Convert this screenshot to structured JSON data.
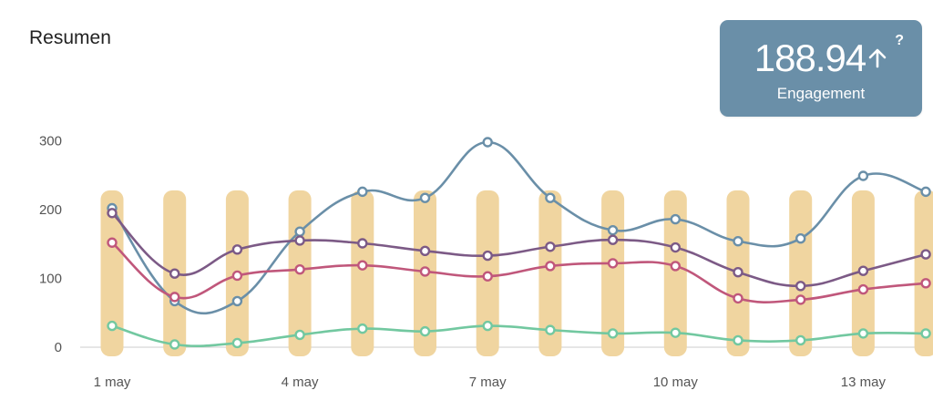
{
  "page": {
    "title": "Resumen"
  },
  "kpi": {
    "value": "188.94",
    "label": "Engagement",
    "help": "?",
    "trend": "up-arrow-icon"
  },
  "chart_data": {
    "type": "line",
    "x": [
      "1 may",
      "2 may",
      "3 may",
      "4 may",
      "5 may",
      "6 may",
      "7 may",
      "8 may",
      "9 may",
      "10 may",
      "11 may",
      "12 may",
      "13 may",
      "14 may"
    ],
    "xticks": [
      "1 may",
      "4 may",
      "7 may",
      "10 may",
      "13 may"
    ],
    "yticks": [
      0,
      100,
      200,
      300
    ],
    "ylim": [
      0,
      320
    ],
    "bars": {
      "color": "#f0d5a0",
      "values": [
        228,
        228,
        228,
        228,
        228,
        228,
        228,
        228,
        228,
        228,
        228,
        228,
        228,
        228
      ]
    },
    "series": [
      {
        "color": "#6a8fa8",
        "values": [
          202,
          67,
          67,
          168,
          226,
          217,
          298,
          217,
          170,
          186,
          154,
          158,
          249,
          226
        ]
      },
      {
        "color": "#7c5a86",
        "values": [
          195,
          107,
          142,
          155,
          151,
          140,
          133,
          146,
          156,
          145,
          109,
          89,
          111,
          135
        ]
      },
      {
        "color": "#c0577b",
        "values": [
          152,
          73,
          104,
          113,
          119,
          110,
          103,
          118,
          122,
          118,
          71,
          69,
          84,
          93
        ]
      },
      {
        "color": "#72c8a0",
        "values": [
          31,
          4,
          6,
          18,
          27,
          23,
          31,
          25,
          20,
          21,
          10,
          10,
          20,
          20
        ]
      }
    ],
    "grid": false
  }
}
